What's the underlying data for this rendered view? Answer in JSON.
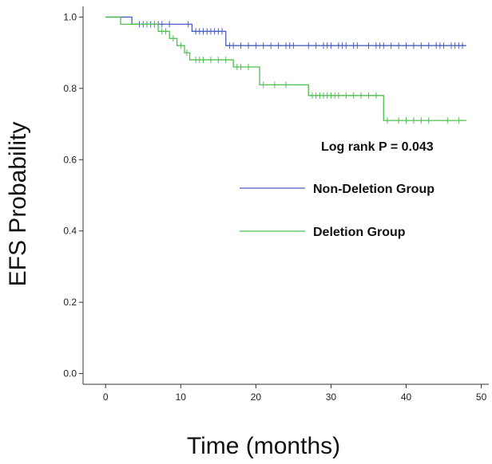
{
  "chart_data": {
    "type": "line",
    "subtype": "kaplan-meier",
    "title": "",
    "xlabel": "Time (months)",
    "ylabel": "EFS Probability",
    "xlim": [
      -3,
      51
    ],
    "ylim": [
      -0.03,
      1.03
    ],
    "xticks": [
      0,
      10,
      20,
      30,
      40,
      50
    ],
    "yticks": [
      0.0,
      0.2,
      0.4,
      0.6,
      0.8,
      1.0
    ],
    "xtick_labels": [
      "0",
      "10",
      "20",
      "30",
      "40",
      "50"
    ],
    "ytick_labels": [
      "0.0",
      "0.2",
      "0.4",
      "0.6",
      "0.8",
      "1.0"
    ],
    "grid": false,
    "legend_position": "center-right",
    "annotation": "Log rank P = 0.043",
    "series": [
      {
        "name": "Non-Deletion Group",
        "color": "#4a5fbf",
        "steps": [
          [
            0,
            1.0
          ],
          [
            3.5,
            0.98
          ],
          [
            11.5,
            0.96
          ],
          [
            16,
            0.92
          ],
          [
            48,
            0.92
          ]
        ],
        "censors": [
          4.5,
          5,
          5.5,
          6,
          6.5,
          7,
          7.5,
          8.5,
          11,
          12,
          12.5,
          13,
          13.5,
          14,
          14.5,
          15,
          15.5,
          16.5,
          17,
          18,
          19,
          20,
          21,
          22,
          23,
          24,
          24.5,
          25,
          27,
          28,
          29,
          29.5,
          30,
          31,
          31.5,
          32,
          33,
          33.5,
          35,
          36,
          36.5,
          37,
          38,
          39,
          40,
          41,
          42,
          43,
          44,
          44.5,
          45,
          46,
          46.5,
          47,
          47.5
        ]
      },
      {
        "name": "Deletion Group",
        "color": "#4fbf4f",
        "steps": [
          [
            0,
            1.0
          ],
          [
            2,
            0.98
          ],
          [
            7,
            0.96
          ],
          [
            8.5,
            0.94
          ],
          [
            9.5,
            0.92
          ],
          [
            10.5,
            0.9
          ],
          [
            11.2,
            0.88
          ],
          [
            17,
            0.86
          ],
          [
            20.5,
            0.81
          ],
          [
            27,
            0.78
          ],
          [
            37,
            0.71
          ],
          [
            48,
            0.71
          ]
        ],
        "censors": [
          5.5,
          6.5,
          7.5,
          8,
          9,
          10,
          10.8,
          12,
          12.5,
          13,
          14,
          15,
          16,
          17.5,
          18,
          19,
          21,
          22.5,
          24,
          27.5,
          28,
          28.5,
          29,
          29.5,
          30,
          30.5,
          31,
          32,
          33,
          34,
          35,
          36,
          37.5,
          39,
          40,
          41,
          42,
          43,
          45.5,
          47
        ]
      }
    ]
  }
}
